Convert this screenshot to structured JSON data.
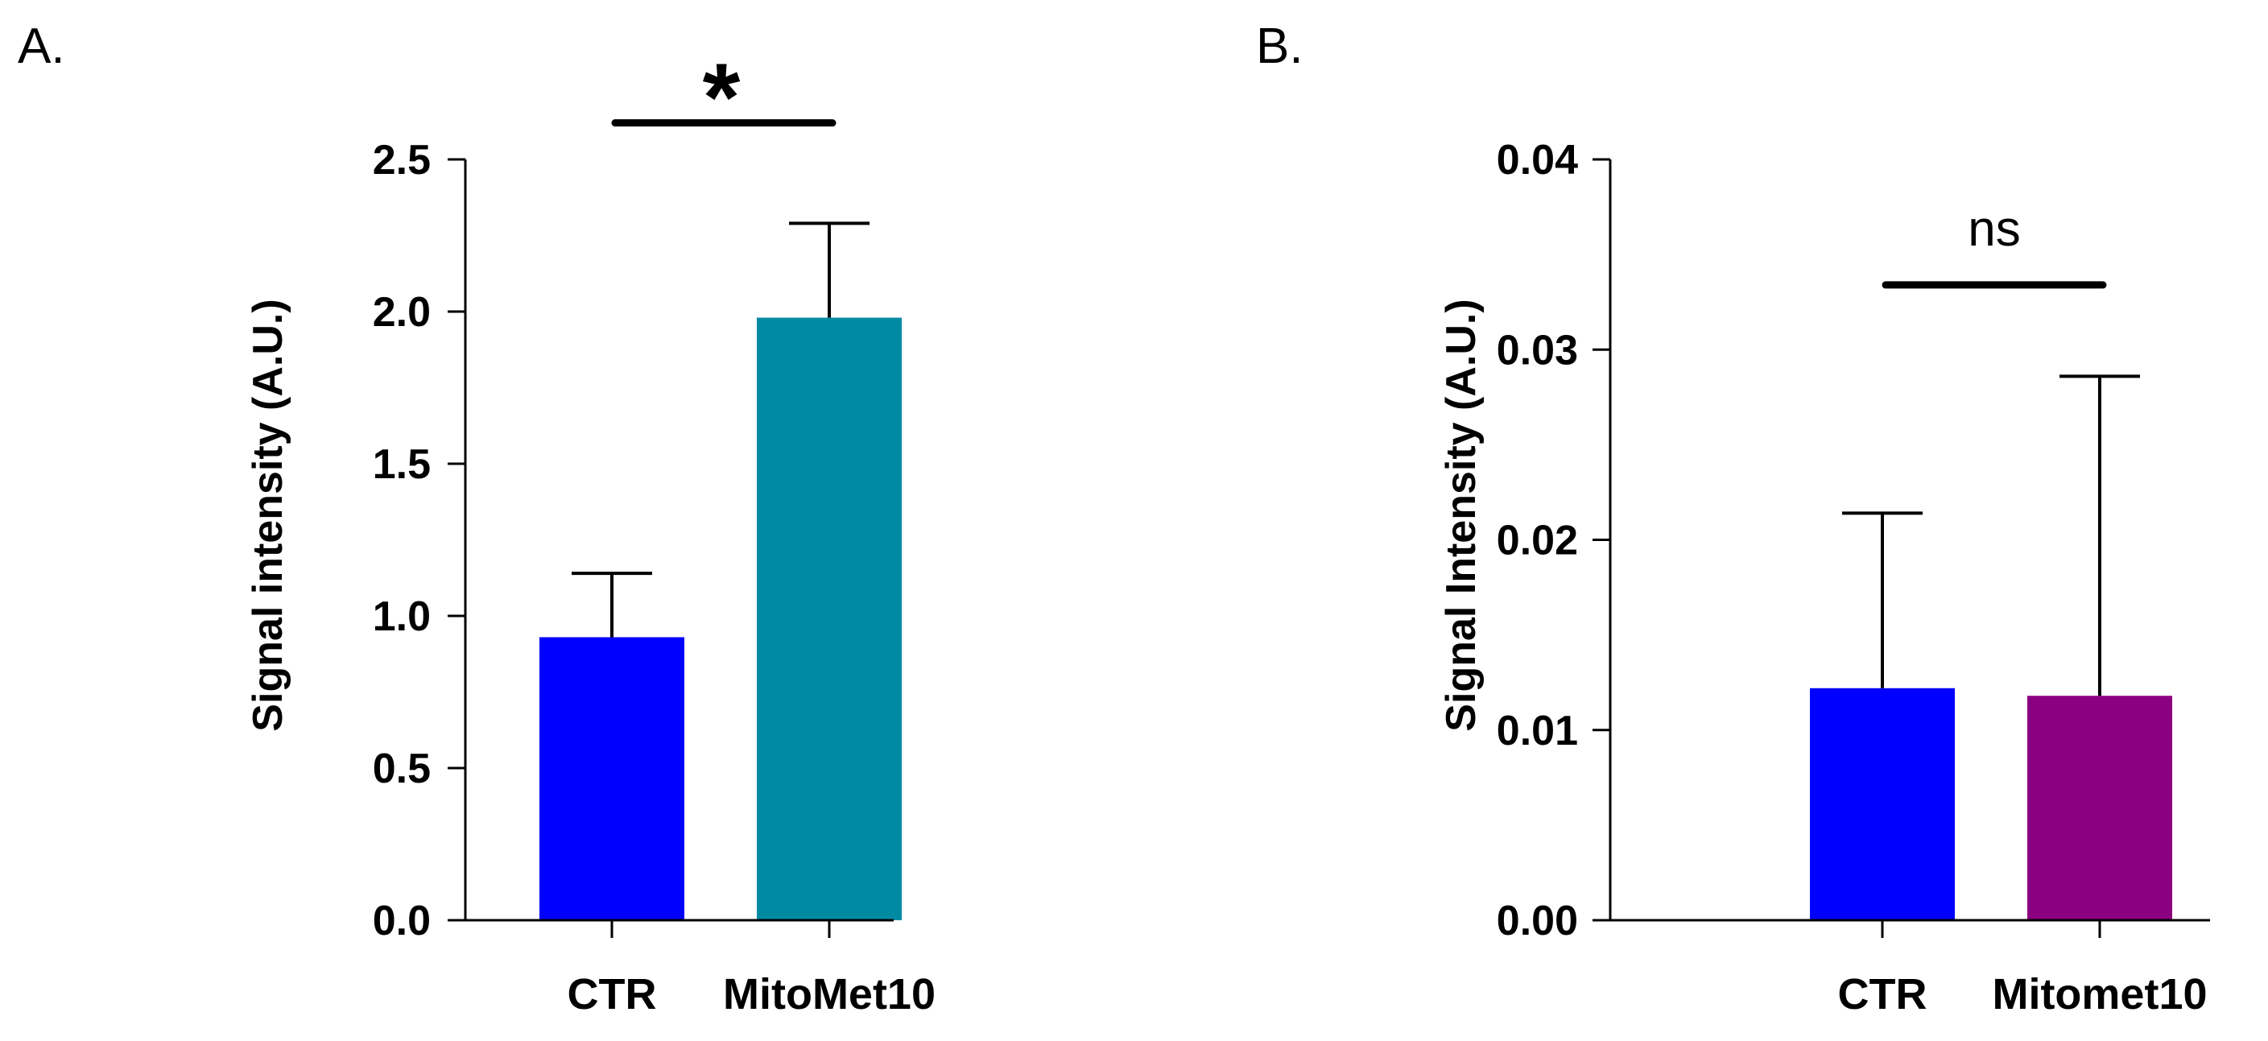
{
  "chart_data": [
    {
      "type": "bar",
      "panel_label": "A.",
      "ylabel": "Signal intensity (A.U.)",
      "xlabel": "",
      "categories": [
        "CTR",
        "MitoMet10"
      ],
      "values": [
        0.93,
        1.98
      ],
      "errors": [
        0.21,
        0.31
      ],
      "colors": [
        "#0000FF",
        "#008BA3"
      ],
      "ylim": [
        0,
        2.5
      ],
      "yticks": [
        0.0,
        0.5,
        1.0,
        1.5,
        2.0,
        2.5
      ],
      "ytick_labels": [
        "0.0",
        "0.5",
        "1.0",
        "1.5",
        "2.0",
        "2.5"
      ],
      "significance": {
        "label": "*",
        "from": 0,
        "to": 1,
        "level": 2.62
      }
    },
    {
      "type": "bar",
      "panel_label": "B.",
      "ylabel": "Signal Intensity (A.U.)",
      "xlabel": "",
      "categories": [
        "CTR",
        "Mitomet10"
      ],
      "values": [
        0.0122,
        0.0118
      ],
      "errors": [
        0.0092,
        0.0168
      ],
      "colors": [
        "#0000FF",
        "#8B0080"
      ],
      "ylim": [
        0,
        0.04
      ],
      "yticks": [
        0.0,
        0.01,
        0.02,
        0.03,
        0.04
      ],
      "ytick_labels": [
        "0.00",
        "0.01",
        "0.02",
        "0.03",
        "0.04"
      ],
      "significance": {
        "label": "ns",
        "from": 0,
        "to": 1,
        "level": 0.0334
      }
    }
  ]
}
